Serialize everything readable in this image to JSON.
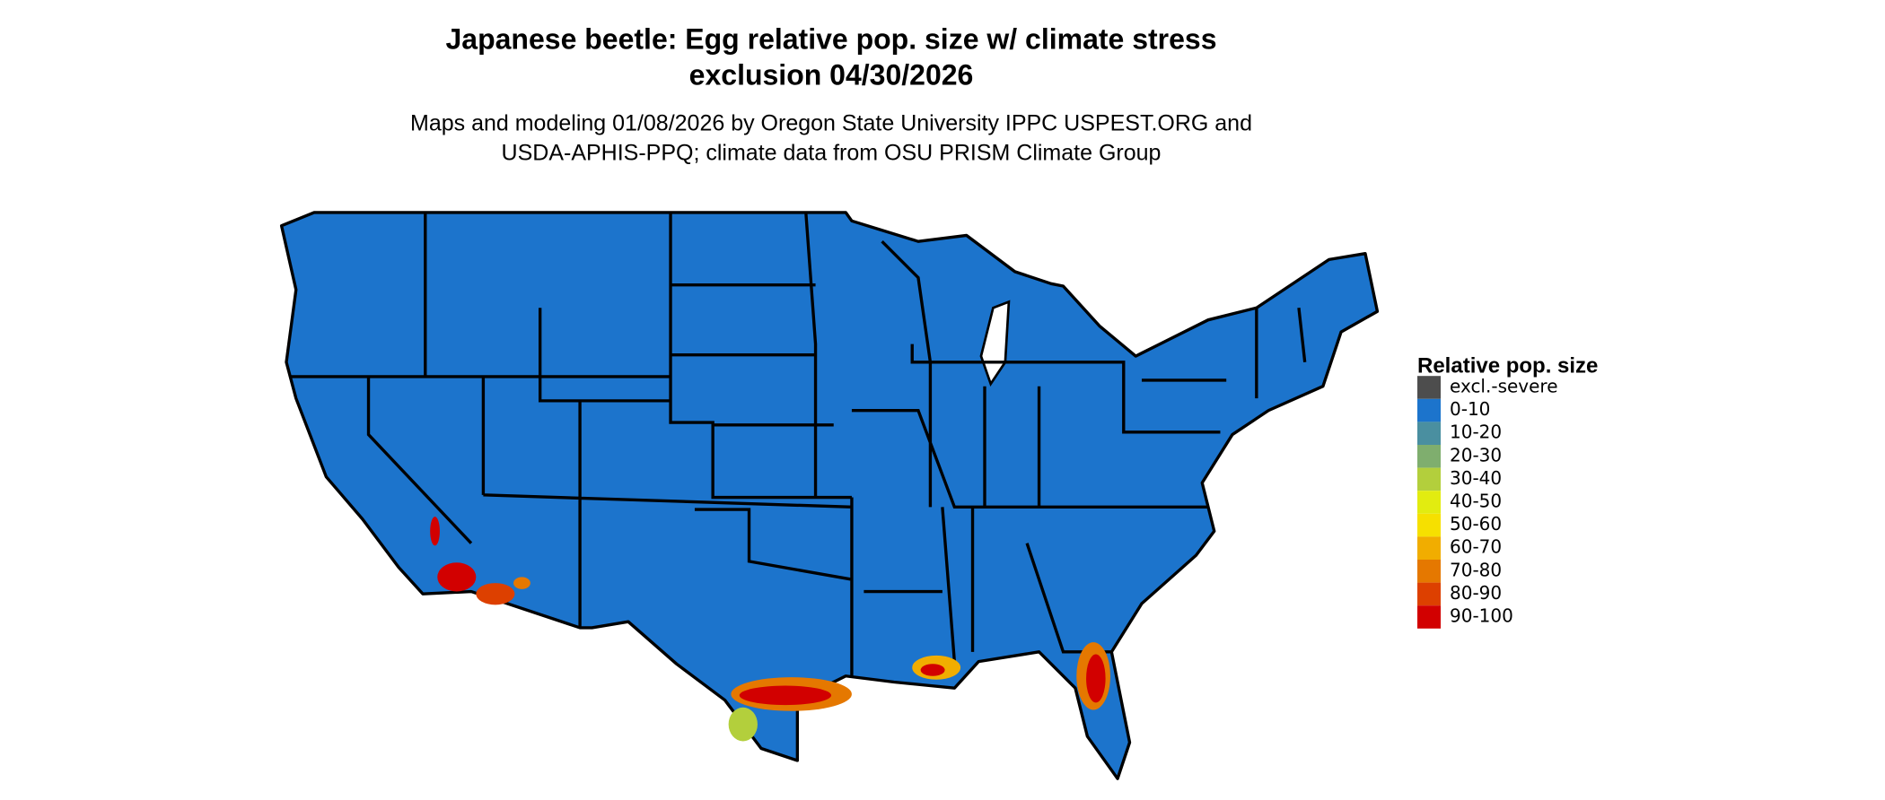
{
  "header": {
    "title_lines": [
      "Japanese beetle: Egg relative pop. size w/ climate stress",
      "exclusion 04/30/2026"
    ],
    "subtitle_lines": [
      "Maps and modeling 01/08/2026 by Oregon State University IPPC USPEST.ORG and",
      "USDA-APHIS-PPQ; climate data from OSU PRISM Climate Group"
    ]
  },
  "legend": {
    "title": "Relative pop. size",
    "items": [
      {
        "label": "excl.-severe",
        "color": "#4d4d4d"
      },
      {
        "label": "0-10",
        "color": "#1c74cc"
      },
      {
        "label": "10-20",
        "color": "#4a8fa0"
      },
      {
        "label": "20-30",
        "color": "#7fae6e"
      },
      {
        "label": "30-40",
        "color": "#b3cf3c"
      },
      {
        "label": "40-50",
        "color": "#e2ec10"
      },
      {
        "label": "50-60",
        "color": "#f6e000"
      },
      {
        "label": "60-70",
        "color": "#f1ad00"
      },
      {
        "label": "70-80",
        "color": "#e57800"
      },
      {
        "label": "80-90",
        "color": "#dd4000"
      },
      {
        "label": "90-100",
        "color": "#d20000"
      }
    ]
  }
}
